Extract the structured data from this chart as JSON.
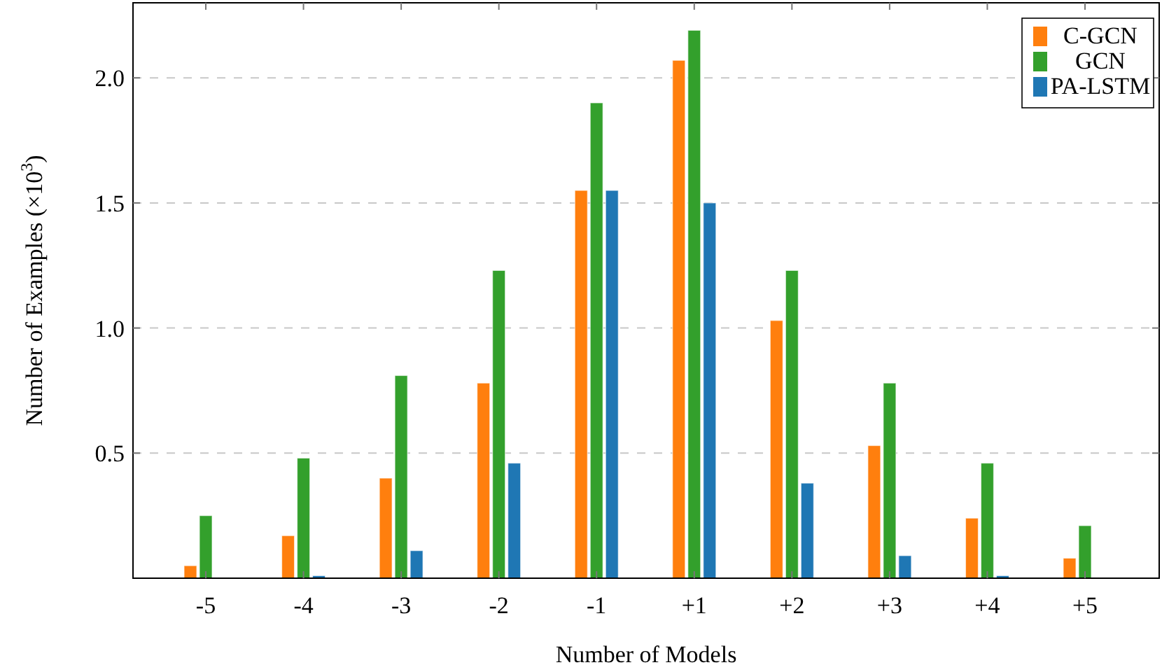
{
  "chart_data": {
    "type": "bar",
    "xlabel": "Number of Models",
    "ylabel": "Number of Examples (×10$^{3}$)",
    "categories": [
      "-5",
      "-4",
      "-3",
      "-2",
      "-1",
      "+1",
      "+2",
      "+3",
      "+4",
      "+5"
    ],
    "series": [
      {
        "name": "C-GCN",
        "color": "#ff7f0e",
        "values": [
          0.05,
          0.17,
          0.4,
          0.78,
          1.55,
          2.07,
          1.03,
          0.53,
          0.24,
          0.08
        ]
      },
      {
        "name": "GCN",
        "color": "#33a02c",
        "values": [
          0.25,
          0.48,
          0.81,
          1.23,
          1.9,
          2.19,
          1.23,
          0.78,
          0.46,
          0.21
        ]
      },
      {
        "name": "PA-LSTM",
        "color": "#1f77b4",
        "values": [
          0,
          0.01,
          0.11,
          0.46,
          1.55,
          1.5,
          0.38,
          0.09,
          0.01,
          0
        ]
      }
    ],
    "ylim": [
      0,
      2.3
    ],
    "yticks": [
      0.5,
      {
        "value": 1,
        "label": "1.0"
      },
      1.5,
      {
        "value": 2,
        "label": "2.0"
      }
    ],
    "grid": "y",
    "line_style": "dashed",
    "legend": "top right"
  }
}
